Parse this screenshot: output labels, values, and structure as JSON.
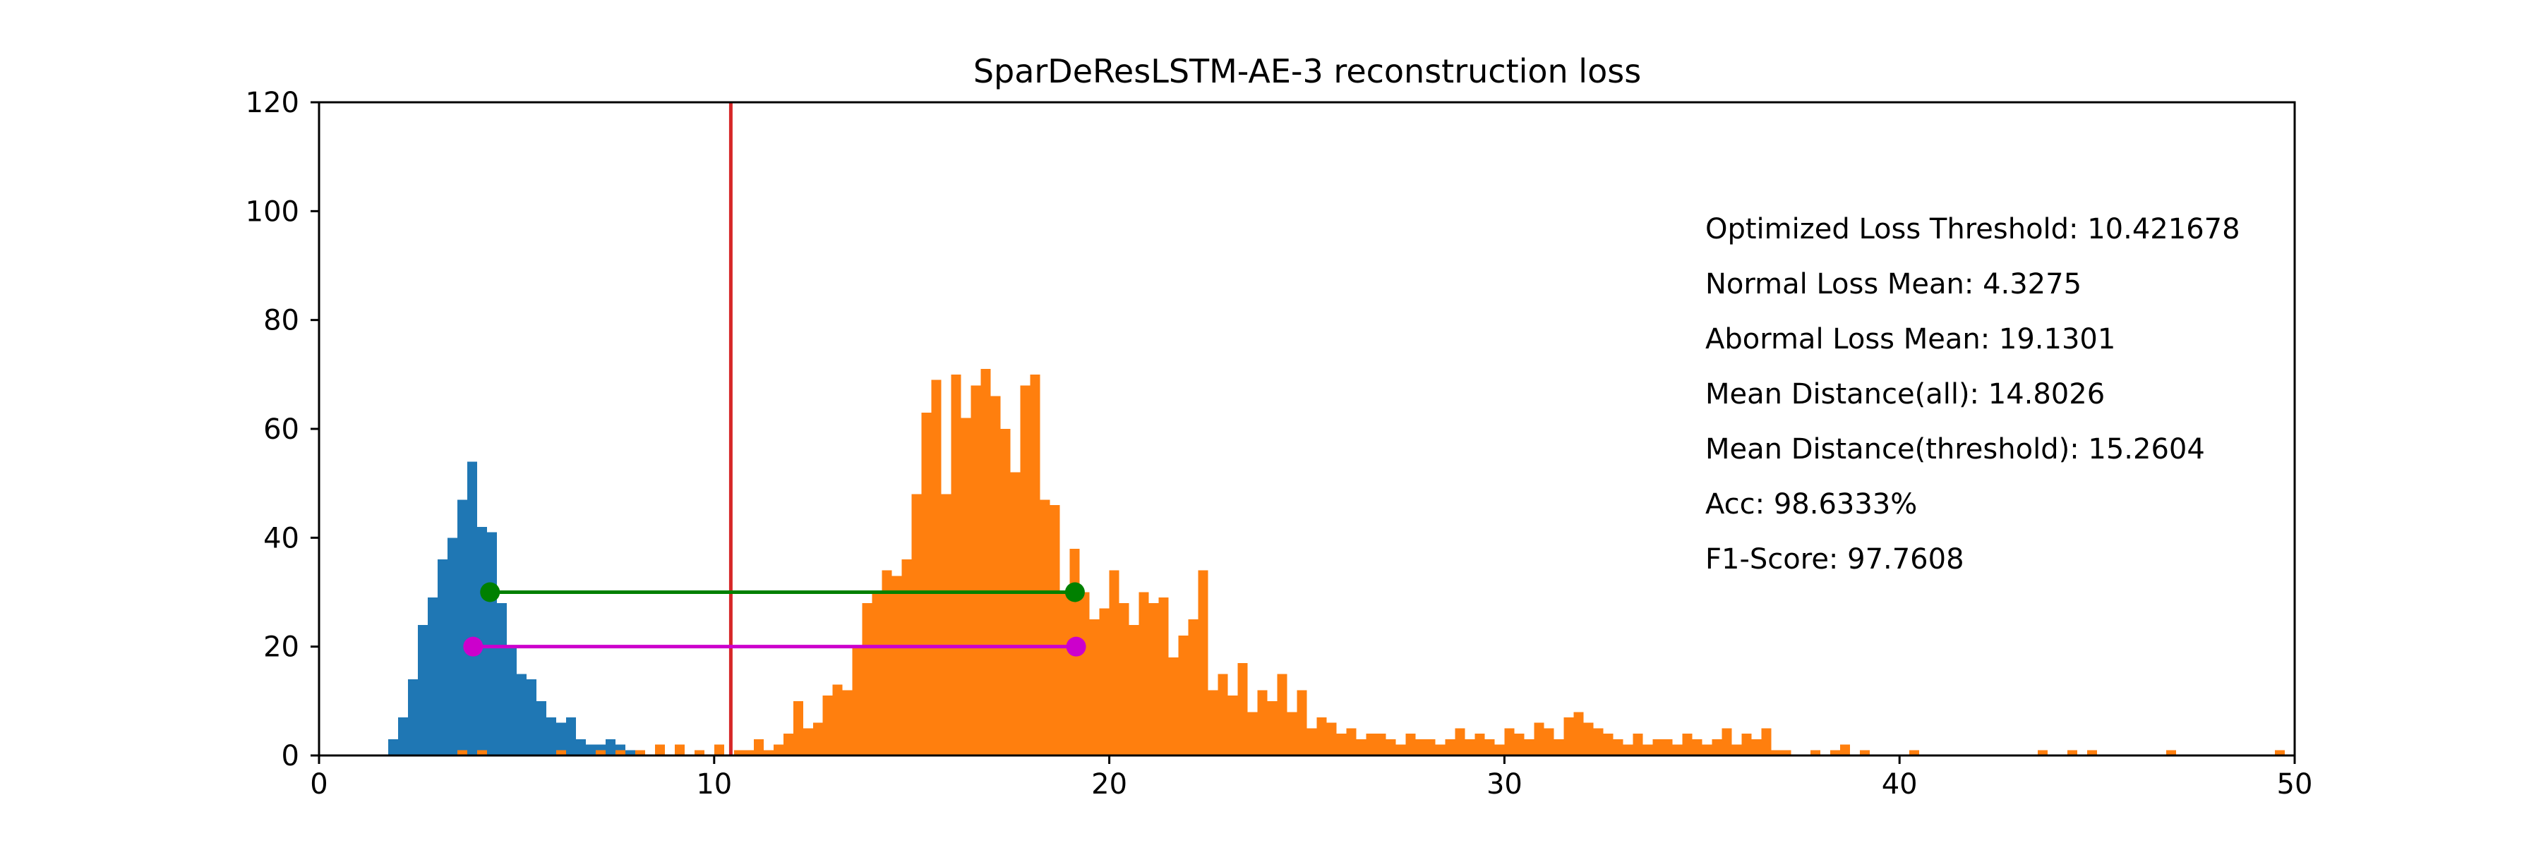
{
  "chart_data": {
    "type": "histogram",
    "title": "SparDeResLSTM-AE-3 reconstruction loss",
    "xlabel": "",
    "ylabel": "",
    "xlim": [
      0,
      50
    ],
    "ylim": [
      0,
      120
    ],
    "xticks": [
      "0",
      "10",
      "20",
      "30",
      "40",
      "50"
    ],
    "yticks": [
      "0",
      "20",
      "40",
      "60",
      "80",
      "100",
      "120"
    ],
    "grid": false,
    "bin_width": 0.25,
    "series": [
      {
        "color": "#1f77b4",
        "bins": [
          [
            1.75,
            3
          ],
          [
            2.0,
            7
          ],
          [
            2.25,
            14
          ],
          [
            2.5,
            24
          ],
          [
            2.75,
            29
          ],
          [
            3.0,
            36
          ],
          [
            3.25,
            40
          ],
          [
            3.5,
            47
          ],
          [
            3.75,
            54
          ],
          [
            4.0,
            42
          ],
          [
            4.25,
            41
          ],
          [
            4.5,
            28
          ],
          [
            4.75,
            20
          ],
          [
            5.0,
            15
          ],
          [
            5.25,
            14
          ],
          [
            5.5,
            10
          ],
          [
            5.75,
            7
          ],
          [
            6.0,
            6
          ],
          [
            6.25,
            7
          ],
          [
            6.5,
            3
          ],
          [
            6.75,
            2
          ],
          [
            7.0,
            2
          ],
          [
            7.25,
            3
          ],
          [
            7.5,
            2
          ],
          [
            7.75,
            1
          ],
          [
            8.0,
            1
          ],
          [
            8.5,
            1
          ]
        ]
      },
      {
        "color": "#ff7f0e",
        "bins": [
          [
            3.5,
            1
          ],
          [
            4.0,
            1
          ],
          [
            6.0,
            1
          ],
          [
            7.0,
            1
          ],
          [
            7.5,
            1
          ],
          [
            8.0,
            1
          ],
          [
            8.5,
            2
          ],
          [
            9.0,
            2
          ],
          [
            9.5,
            1
          ],
          [
            10.0,
            2
          ],
          [
            10.5,
            1
          ],
          [
            10.75,
            1
          ],
          [
            11.0,
            3
          ],
          [
            11.25,
            1
          ],
          [
            11.5,
            2
          ],
          [
            11.75,
            4
          ],
          [
            12.0,
            10
          ],
          [
            12.25,
            5
          ],
          [
            12.5,
            6
          ],
          [
            12.75,
            11
          ],
          [
            13.0,
            13
          ],
          [
            13.25,
            12
          ],
          [
            13.5,
            20
          ],
          [
            13.75,
            28
          ],
          [
            14.0,
            30
          ],
          [
            14.25,
            34
          ],
          [
            14.5,
            33
          ],
          [
            14.75,
            36
          ],
          [
            15.0,
            48
          ],
          [
            15.25,
            63
          ],
          [
            15.5,
            69
          ],
          [
            15.75,
            48
          ],
          [
            16.0,
            70
          ],
          [
            16.25,
            62
          ],
          [
            16.5,
            68
          ],
          [
            16.75,
            71
          ],
          [
            17.0,
            66
          ],
          [
            17.25,
            60
          ],
          [
            17.5,
            52
          ],
          [
            17.75,
            68
          ],
          [
            18.0,
            70
          ],
          [
            18.25,
            47
          ],
          [
            18.5,
            46
          ],
          [
            18.75,
            30
          ],
          [
            19.0,
            38
          ],
          [
            19.25,
            30
          ],
          [
            19.5,
            25
          ],
          [
            19.75,
            27
          ],
          [
            20.0,
            34
          ],
          [
            20.25,
            28
          ],
          [
            20.5,
            24
          ],
          [
            20.75,
            30
          ],
          [
            21.0,
            28
          ],
          [
            21.25,
            29
          ],
          [
            21.5,
            18
          ],
          [
            21.75,
            22
          ],
          [
            22.0,
            25
          ],
          [
            22.25,
            34
          ],
          [
            22.5,
            12
          ],
          [
            22.75,
            15
          ],
          [
            23.0,
            11
          ],
          [
            23.25,
            17
          ],
          [
            23.5,
            8
          ],
          [
            23.75,
            12
          ],
          [
            24.0,
            10
          ],
          [
            24.25,
            15
          ],
          [
            24.5,
            8
          ],
          [
            24.75,
            12
          ],
          [
            25.0,
            5
          ],
          [
            25.25,
            7
          ],
          [
            25.5,
            6
          ],
          [
            25.75,
            4
          ],
          [
            26.0,
            5
          ],
          [
            26.25,
            3
          ],
          [
            26.5,
            4
          ],
          [
            26.75,
            4
          ],
          [
            27.0,
            3
          ],
          [
            27.25,
            2
          ],
          [
            27.5,
            4
          ],
          [
            27.75,
            3
          ],
          [
            28.0,
            3
          ],
          [
            28.25,
            2
          ],
          [
            28.5,
            3
          ],
          [
            28.75,
            5
          ],
          [
            29.0,
            3
          ],
          [
            29.25,
            4
          ],
          [
            29.5,
            3
          ],
          [
            29.75,
            2
          ],
          [
            30.0,
            5
          ],
          [
            30.25,
            4
          ],
          [
            30.5,
            3
          ],
          [
            30.75,
            6
          ],
          [
            31.0,
            5
          ],
          [
            31.25,
            3
          ],
          [
            31.5,
            7
          ],
          [
            31.75,
            8
          ],
          [
            32.0,
            6
          ],
          [
            32.25,
            5
          ],
          [
            32.5,
            4
          ],
          [
            32.75,
            3
          ],
          [
            33.0,
            2
          ],
          [
            33.25,
            4
          ],
          [
            33.5,
            2
          ],
          [
            33.75,
            3
          ],
          [
            34.0,
            3
          ],
          [
            34.25,
            2
          ],
          [
            34.5,
            4
          ],
          [
            34.75,
            3
          ],
          [
            35.0,
            2
          ],
          [
            35.25,
            3
          ],
          [
            35.5,
            5
          ],
          [
            35.75,
            2
          ],
          [
            36.0,
            4
          ],
          [
            36.25,
            3
          ],
          [
            36.5,
            5
          ],
          [
            36.75,
            1
          ],
          [
            37.0,
            1
          ],
          [
            37.75,
            1
          ],
          [
            38.25,
            1
          ],
          [
            38.5,
            2
          ],
          [
            39.0,
            1
          ],
          [
            40.25,
            1
          ],
          [
            43.5,
            1
          ],
          [
            44.25,
            1
          ],
          [
            44.75,
            1
          ],
          [
            46.75,
            1
          ],
          [
            49.5,
            1
          ]
        ]
      }
    ],
    "threshold": {
      "x": 10.421678,
      "color": "#d62728"
    },
    "distance_markers": [
      {
        "x1": 4.3275,
        "x2": 19.1301,
        "y": 30,
        "color": "#008000"
      },
      {
        "x1": 3.9,
        "x2": 19.16,
        "y": 20,
        "color": "#cc00cc"
      }
    ],
    "annotations": [
      "Optimized Loss Threshold: 10.421678",
      "Normal Loss Mean: 4.3275",
      "Abormal Loss Mean: 19.1301",
      "Mean Distance(all): 14.8026",
      "Mean Distance(threshold): 15.2604",
      "Acc: 98.6333%",
      "F1-Score: 97.7608"
    ]
  }
}
